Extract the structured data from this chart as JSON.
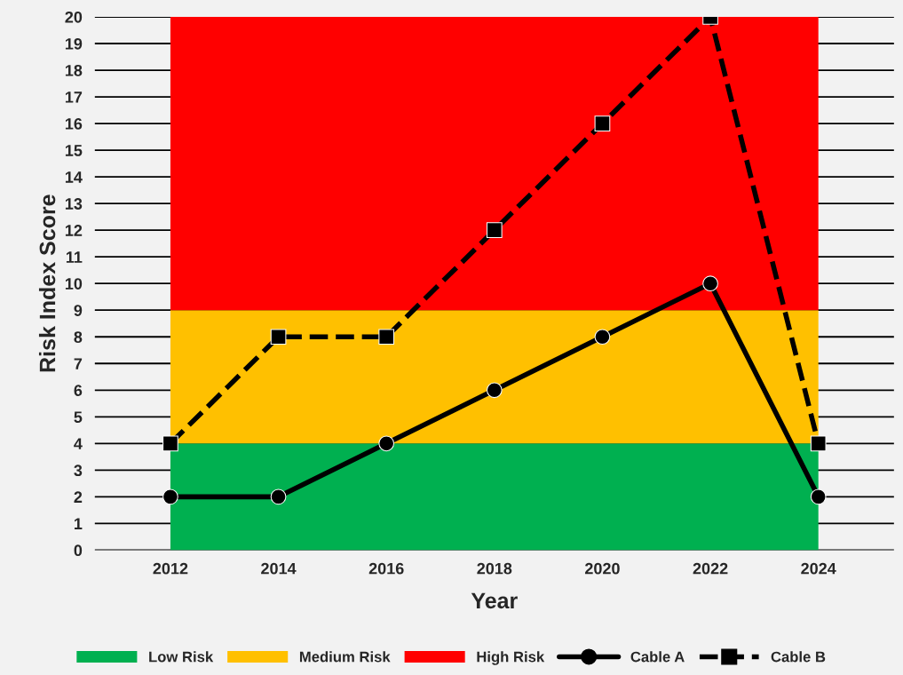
{
  "chart_data": {
    "type": "line",
    "xlabel": "Year",
    "ylabel": "Risk Index Score",
    "categories": [
      "2012",
      "2014",
      "2016",
      "2018",
      "2020",
      "2022",
      "2024"
    ],
    "series": [
      {
        "name": "Cable A",
        "color": "#000000",
        "values": [
          2,
          2,
          4,
          6,
          8,
          10,
          2
        ],
        "marker": "circle",
        "line_style": "solid"
      },
      {
        "name": "Cable B",
        "color": "#000000",
        "values": [
          4,
          8,
          8,
          12,
          16,
          20,
          4
        ],
        "marker": "square",
        "line_style": "dashed"
      }
    ],
    "bands": [
      {
        "axis": "y",
        "from": 0,
        "to": 4,
        "label": "Low Risk",
        "color": "#00b050"
      },
      {
        "axis": "y",
        "from": 4,
        "to": 9,
        "label": "Medium Risk",
        "color": "#ffc000"
      },
      {
        "axis": "y",
        "from": 9,
        "to": 20,
        "label": "High Risk",
        "color": "#ff0000"
      }
    ],
    "ylim": [
      0,
      20
    ],
    "yticks": [
      0,
      1,
      2,
      3,
      4,
      5,
      6,
      7,
      8,
      9,
      10,
      11,
      12,
      13,
      14,
      15,
      16,
      17,
      18,
      19,
      20
    ],
    "grid": "y",
    "legend": "bottom"
  }
}
